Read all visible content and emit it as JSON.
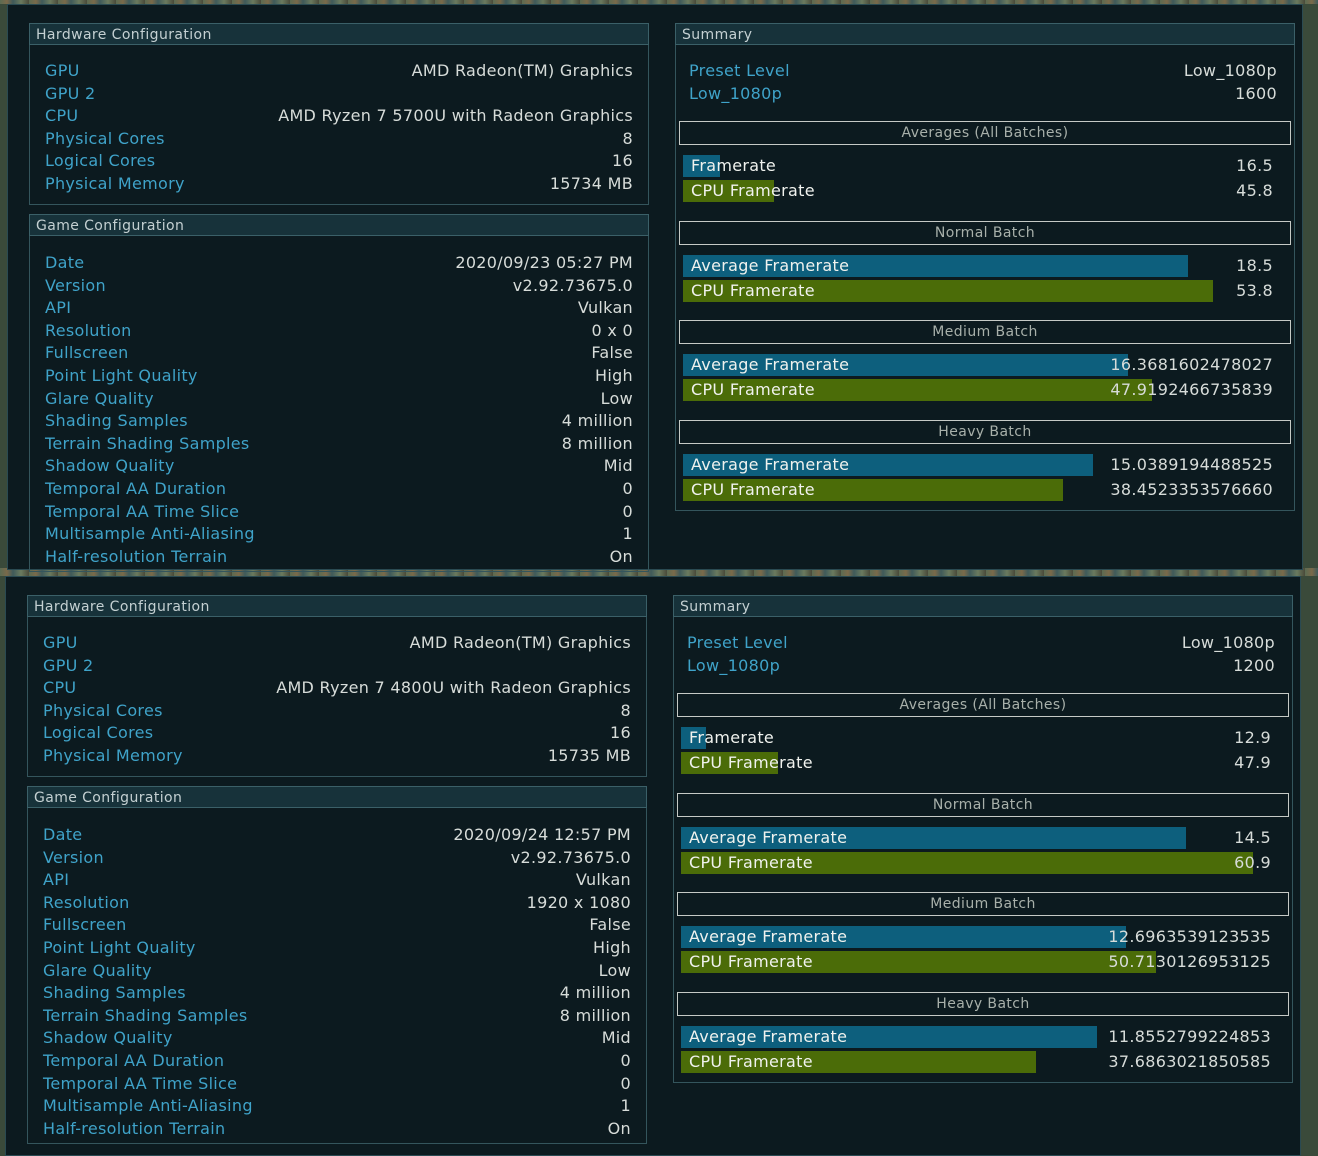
{
  "runs": [
    {
      "hardware": {
        "header": "Hardware Configuration",
        "rows": [
          {
            "key": "GPU",
            "value": "AMD Radeon(TM) Graphics"
          },
          {
            "key": "GPU 2",
            "value": ""
          },
          {
            "key": "CPU",
            "value": "AMD Ryzen 7 5700U with Radeon Graphics"
          },
          {
            "key": "Physical Cores",
            "value": "8"
          },
          {
            "key": "Logical Cores",
            "value": "16"
          },
          {
            "key": "Physical Memory",
            "value": "15734 MB"
          }
        ]
      },
      "game": {
        "header": "Game Configuration",
        "rows": [
          {
            "key": "Date",
            "value": "2020/09/23 05:27 PM"
          },
          {
            "key": "Version",
            "value": "v2.92.73675.0"
          },
          {
            "key": "API",
            "value": "Vulkan"
          },
          {
            "key": "Resolution",
            "value": "0 x 0"
          },
          {
            "key": "Fullscreen",
            "value": "False"
          },
          {
            "key": "Point Light Quality",
            "value": "High"
          },
          {
            "key": "Glare Quality",
            "value": "Low"
          },
          {
            "key": "Shading Samples",
            "value": "4 million"
          },
          {
            "key": "Terrain Shading Samples",
            "value": "8 million"
          },
          {
            "key": "Shadow Quality",
            "value": "Mid"
          },
          {
            "key": "Temporal AA Duration",
            "value": "0"
          },
          {
            "key": "Temporal AA Time Slice",
            "value": "0"
          },
          {
            "key": "Multisample Anti-Aliasing",
            "value": "1"
          },
          {
            "key": "Half-resolution Terrain",
            "value": "On"
          }
        ]
      },
      "summary": {
        "header": "Summary",
        "rows": [
          {
            "key": "Preset Level",
            "value": "Low_1080p"
          },
          {
            "key": "Low_1080p",
            "value": "1600"
          }
        ],
        "batches": [
          {
            "title": "Averages (All Batches)",
            "bars": [
              {
                "label": "Framerate",
                "value": "16.5",
                "fill": 0.061,
                "color": "#0d5f7d"
              },
              {
                "label": "CPU Framerate",
                "value": "45.8",
                "fill": 0.151,
                "color": "#4b6c08"
              }
            ]
          },
          {
            "title": "Normal Batch",
            "bars": [
              {
                "label": "Average Framerate",
                "value": "18.5",
                "fill": 0.842,
                "color": "#0d5f7d"
              },
              {
                "label": "CPU Framerate",
                "value": "53.8",
                "fill": 0.884,
                "color": "#4b6c08"
              }
            ]
          },
          {
            "title": "Medium Batch",
            "bars": [
              {
                "label": "Average Framerate",
                "value": "16.3681602478027",
                "fill": 0.741,
                "color": "#0d5f7d"
              },
              {
                "label": "CPU Framerate",
                "value": "47.9192466735839",
                "fill": 0.781,
                "color": "#4b6c08"
              }
            ]
          },
          {
            "title": "Heavy Batch",
            "bars": [
              {
                "label": "Average Framerate",
                "value": "15.0389194488525",
                "fill": 0.683,
                "color": "#0d5f7d"
              },
              {
                "label": "CPU Framerate",
                "value": "38.4523353576660",
                "fill": 0.633,
                "color": "#4b6c08"
              }
            ]
          }
        ]
      }
    },
    {
      "hardware": {
        "header": "Hardware Configuration",
        "rows": [
          {
            "key": "GPU",
            "value": "AMD Radeon(TM) Graphics"
          },
          {
            "key": "GPU 2",
            "value": ""
          },
          {
            "key": "CPU",
            "value": "AMD Ryzen 7 4800U with Radeon Graphics"
          },
          {
            "key": "Physical Cores",
            "value": "8"
          },
          {
            "key": "Logical Cores",
            "value": "16"
          },
          {
            "key": "Physical Memory",
            "value": "15735 MB"
          }
        ]
      },
      "game": {
        "header": "Game Configuration",
        "rows": [
          {
            "key": "Date",
            "value": "2020/09/24 12:57 PM"
          },
          {
            "key": "Version",
            "value": "v2.92.73675.0"
          },
          {
            "key": "API",
            "value": "Vulkan"
          },
          {
            "key": "Resolution",
            "value": "1920 x 1080"
          },
          {
            "key": "Fullscreen",
            "value": "False"
          },
          {
            "key": "Point Light Quality",
            "value": "High"
          },
          {
            "key": "Glare Quality",
            "value": "Low"
          },
          {
            "key": "Shading Samples",
            "value": "4 million"
          },
          {
            "key": "Terrain Shading Samples",
            "value": "8 million"
          },
          {
            "key": "Shadow Quality",
            "value": "Mid"
          },
          {
            "key": "Temporal AA Duration",
            "value": "0"
          },
          {
            "key": "Temporal AA Time Slice",
            "value": "0"
          },
          {
            "key": "Multisample Anti-Aliasing",
            "value": "1"
          },
          {
            "key": "Half-resolution Terrain",
            "value": "On"
          }
        ]
      },
      "summary": {
        "header": "Summary",
        "rows": [
          {
            "key": "Preset Level",
            "value": "Low_1080p"
          },
          {
            "key": "Low_1080p",
            "value": "1200"
          }
        ],
        "batches": [
          {
            "title": "Averages (All Batches)",
            "bars": [
              {
                "label": "Framerate",
                "value": "12.9",
                "fill": 0.041,
                "color": "#0d5f7d"
              },
              {
                "label": "CPU Framerate",
                "value": "47.9",
                "fill": 0.161,
                "color": "#4b6c08"
              }
            ]
          },
          {
            "title": "Normal Batch",
            "bars": [
              {
                "label": "Average Framerate",
                "value": "14.5",
                "fill": 0.842,
                "color": "#0d5f7d"
              },
              {
                "label": "CPU Framerate",
                "value": "60.9",
                "fill": 0.954,
                "color": "#4b6c08"
              }
            ]
          },
          {
            "title": "Medium Batch",
            "bars": [
              {
                "label": "Average Framerate",
                "value": "12.6963539123535",
                "fill": 0.741,
                "color": "#0d5f7d"
              },
              {
                "label": "CPU Framerate",
                "value": "50.7130126953125",
                "fill": 0.792,
                "color": "#4b6c08"
              }
            ]
          },
          {
            "title": "Heavy Batch",
            "bars": [
              {
                "label": "Average Framerate",
                "value": "11.8552799224853",
                "fill": 0.693,
                "color": "#0d5f7d"
              },
              {
                "label": "CPU Framerate",
                "value": "37.6863021850585",
                "fill": 0.592,
                "color": "#4b6c08"
              }
            ]
          }
        ]
      }
    }
  ]
}
